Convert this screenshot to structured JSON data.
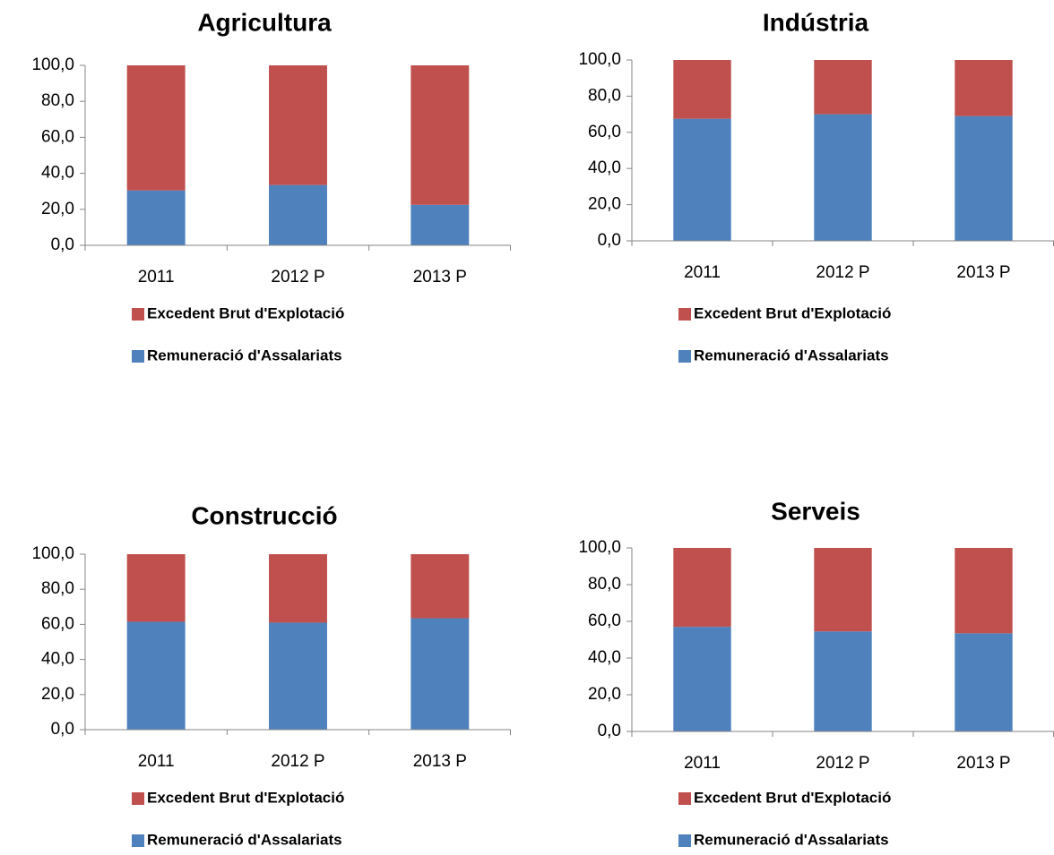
{
  "chart_data": [
    {
      "type": "stacked_bar",
      "title": "Agricultura",
      "categories": [
        "2011",
        "2012 P",
        "2013 P"
      ],
      "series": [
        {
          "name": "Excedent Brut d'Explotació",
          "color": "#c0504d",
          "values": [
            69.5,
            66.5,
            77.5
          ]
        },
        {
          "name": "Remuneració d'Assalariats",
          "color": "#4f81bd",
          "values": [
            30.5,
            33.5,
            22.5
          ]
        }
      ],
      "ylim": [
        0,
        100
      ],
      "yticks": [
        {
          "value": 0,
          "label": "0,0"
        },
        {
          "value": 20,
          "label": "20,0"
        },
        {
          "value": 40,
          "label": "40,0"
        },
        {
          "value": 60,
          "label": "60,0"
        },
        {
          "value": 80,
          "label": "80,0"
        },
        {
          "value": 100,
          "label": "100,0"
        }
      ]
    },
    {
      "type": "stacked_bar",
      "title": "Indústria",
      "categories": [
        "2011",
        "2012 P",
        "2013 P"
      ],
      "series": [
        {
          "name": "Excedent Brut d'Explotació",
          "color": "#c0504d",
          "values": [
            32.5,
            30,
            31
          ]
        },
        {
          "name": "Remuneració d'Assalariats",
          "color": "#4f81bd",
          "values": [
            67.5,
            70,
            69
          ]
        }
      ],
      "ylim": [
        0,
        100
      ],
      "yticks": [
        {
          "value": 0,
          "label": "0,0"
        },
        {
          "value": 20,
          "label": "20,0"
        },
        {
          "value": 40,
          "label": "40,0"
        },
        {
          "value": 60,
          "label": "60,0"
        },
        {
          "value": 80,
          "label": "80,0"
        },
        {
          "value": 100,
          "label": "100,0"
        }
      ]
    },
    {
      "type": "stacked_bar",
      "title": "Construcció",
      "categories": [
        "2011",
        "2012 P",
        "2013 P"
      ],
      "series": [
        {
          "name": "Excedent Brut d'Explotació",
          "color": "#c0504d",
          "values": [
            38.5,
            39,
            36.5
          ]
        },
        {
          "name": "Remuneració d'Assalariats",
          "color": "#4f81bd",
          "values": [
            61.5,
            61,
            63.5
          ]
        }
      ],
      "ylim": [
        0,
        100
      ],
      "yticks": [
        {
          "value": 0,
          "label": "0,0"
        },
        {
          "value": 20,
          "label": "20,0"
        },
        {
          "value": 40,
          "label": "40,0"
        },
        {
          "value": 60,
          "label": "60,0"
        },
        {
          "value": 80,
          "label": "80,0"
        },
        {
          "value": 100,
          "label": "100,0"
        }
      ]
    },
    {
      "type": "stacked_bar",
      "title": "Serveis",
      "categories": [
        "2011",
        "2012 P",
        "2013 P"
      ],
      "series": [
        {
          "name": "Excedent Brut d'Explotació",
          "color": "#c0504d",
          "values": [
            43,
            45.5,
            46.5
          ]
        },
        {
          "name": "Remuneració d'Assalariats",
          "color": "#4f81bd",
          "values": [
            57,
            54.5,
            53.5
          ]
        }
      ],
      "ylim": [
        0,
        100
      ],
      "yticks": [
        {
          "value": 0,
          "label": "0,0"
        },
        {
          "value": 20,
          "label": "20,0"
        },
        {
          "value": 40,
          "label": "40,0"
        },
        {
          "value": 60,
          "label": "60,0"
        },
        {
          "value": 80,
          "label": "80,0"
        },
        {
          "value": 100,
          "label": "100,0"
        }
      ]
    }
  ]
}
